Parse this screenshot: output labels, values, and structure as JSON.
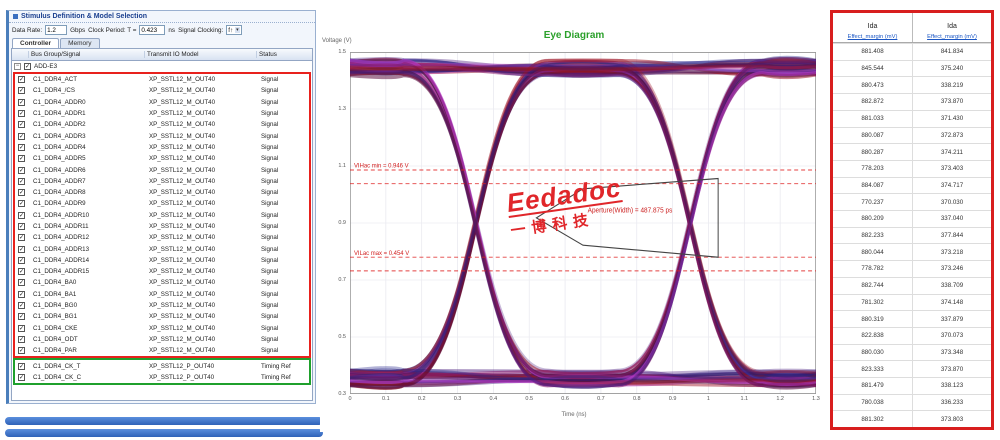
{
  "left_panel": {
    "group_title": "Stimulus Definition & Model Selection",
    "fields": {
      "data_rate_label": "Data Rate:",
      "data_rate_value": "1.2",
      "data_rate_unit": "Gbps",
      "clock_period_label": "Clock Period: T =",
      "clock_period_value": "0.423",
      "clock_period_unit": "ns",
      "signal_clocking_label": "Signal Clocking:",
      "signal_clocking_value": "f↑"
    },
    "tabs": [
      {
        "label": "Controller",
        "active": true
      },
      {
        "label": "Memory",
        "active": false
      }
    ],
    "table": {
      "headers": [
        "Bus Group/Signal",
        "Transmit IO Model",
        "Status"
      ],
      "root_label": "ADD-E3",
      "signal_rows": [
        {
          "signal": "C1_DDR4_ACT",
          "model": "XP_SSTL12_M_OUT40",
          "status": "Signal"
        },
        {
          "signal": "C1_DDR4_/CS",
          "model": "XP_SSTL12_M_OUT40",
          "status": "Signal"
        },
        {
          "signal": "C1_DDR4_ADDR0",
          "model": "XP_SSTL12_M_OUT40",
          "status": "Signal"
        },
        {
          "signal": "C1_DDR4_ADDR1",
          "model": "XP_SSTL12_M_OUT40",
          "status": "Signal"
        },
        {
          "signal": "C1_DDR4_ADDR2",
          "model": "XP_SSTL12_M_OUT40",
          "status": "Signal"
        },
        {
          "signal": "C1_DDR4_ADDR3",
          "model": "XP_SSTL12_M_OUT40",
          "status": "Signal"
        },
        {
          "signal": "C1_DDR4_ADDR4",
          "model": "XP_SSTL12_M_OUT40",
          "status": "Signal"
        },
        {
          "signal": "C1_DDR4_ADDR5",
          "model": "XP_SSTL12_M_OUT40",
          "status": "Signal"
        },
        {
          "signal": "C1_DDR4_ADDR6",
          "model": "XP_SSTL12_M_OUT40",
          "status": "Signal"
        },
        {
          "signal": "C1_DDR4_ADDR7",
          "model": "XP_SSTL12_M_OUT40",
          "status": "Signal"
        },
        {
          "signal": "C1_DDR4_ADDR8",
          "model": "XP_SSTL12_M_OUT40",
          "status": "Signal"
        },
        {
          "signal": "C1_DDR4_ADDR9",
          "model": "XP_SSTL12_M_OUT40",
          "status": "Signal"
        },
        {
          "signal": "C1_DDR4_ADDR10",
          "model": "XP_SSTL12_M_OUT40",
          "status": "Signal"
        },
        {
          "signal": "C1_DDR4_ADDR11",
          "model": "XP_SSTL12_M_OUT40",
          "status": "Signal"
        },
        {
          "signal": "C1_DDR4_ADDR12",
          "model": "XP_SSTL12_M_OUT40",
          "status": "Signal"
        },
        {
          "signal": "C1_DDR4_ADDR13",
          "model": "XP_SSTL12_M_OUT40",
          "status": "Signal"
        },
        {
          "signal": "C1_DDR4_ADDR14",
          "model": "XP_SSTL12_M_OUT40",
          "status": "Signal"
        },
        {
          "signal": "C1_DDR4_ADDR15",
          "model": "XP_SSTL12_M_OUT40",
          "status": "Signal"
        },
        {
          "signal": "C1_DDR4_BA0",
          "model": "XP_SSTL12_M_OUT40",
          "status": "Signal"
        },
        {
          "signal": "C1_DDR4_BA1",
          "model": "XP_SSTL12_M_OUT40",
          "status": "Signal"
        },
        {
          "signal": "C1_DDR4_BG0",
          "model": "XP_SSTL12_M_OUT40",
          "status": "Signal"
        },
        {
          "signal": "C1_DDR4_BG1",
          "model": "XP_SSTL12_M_OUT40",
          "status": "Signal"
        },
        {
          "signal": "C1_DDR4_CKE",
          "model": "XP_SSTL12_M_OUT40",
          "status": "Signal"
        },
        {
          "signal": "C1_DDR4_ODT",
          "model": "XP_SSTL12_M_OUT40",
          "status": "Signal"
        },
        {
          "signal": "C1_DDR4_PAR",
          "model": "XP_SSTL12_M_OUT40",
          "status": "Signal"
        }
      ],
      "clock_rows": [
        {
          "signal": "C1_DDR4_CK_T",
          "model": "XP_SSTL12_P_OUT40",
          "status": "Timing Ref"
        },
        {
          "signal": "C1_DDR4_CK_C",
          "model": "XP_SSTL12_P_OUT40",
          "status": "Timing Ref"
        }
      ]
    }
  },
  "eye": {
    "title": "Eye Diagram",
    "title_color": "#2ba02b",
    "y_axis_label": "Voltage (V)",
    "x_axis_label": "Time (ns)",
    "x_ticks": [
      "0",
      "0.1",
      "0.2",
      "0.3",
      "0.4",
      "0.5",
      "0.6",
      "0.7",
      "0.8",
      "0.9",
      "1",
      "1.1",
      "1.2",
      "1.3"
    ],
    "y_ticks": [
      "1.5",
      "1.3",
      "1.1",
      "0.9",
      "0.7",
      "0.5",
      "0.3"
    ],
    "ref_lines": [
      {
        "pos": 0.345,
        "label": "VIHac min = 0.946 V"
      },
      {
        "pos": 0.385,
        "label": ""
      },
      {
        "pos": 0.6,
        "label": "VILac max = 0.454 V"
      },
      {
        "pos": 0.64,
        "label": ""
      }
    ],
    "aperture_label": "Aperture(Width) = 487.875 ps",
    "watermark": {
      "line1": "Eedadoc",
      "line2": "一博科技"
    },
    "trace_colors": [
      "#4a1d7e",
      "#8c1d6f",
      "#a01a2a",
      "#2d2d8f",
      "#b83bc9",
      "#5e1040",
      "#321b6e",
      "#8a1111"
    ]
  },
  "right_panel": {
    "columns": [
      {
        "title": "Ida",
        "link": "Effect_margin (mV)"
      },
      {
        "title": "Ida",
        "link": "Effect_margin (mV)"
      }
    ],
    "rows": [
      [
        "881.408",
        "841.834"
      ],
      [
        "845.544",
        "375.240"
      ],
      [
        "880.473",
        "338.219"
      ],
      [
        "882.872",
        "373.870"
      ],
      [
        "881.033",
        "371.430"
      ],
      [
        "880.087",
        "372.873"
      ],
      [
        "880.287",
        "374.211"
      ],
      [
        "778.203",
        "373.403"
      ],
      [
        "884.087",
        "374.717"
      ],
      [
        "770.237",
        "370.030"
      ],
      [
        "880.209",
        "337.040"
      ],
      [
        "882.233",
        "377.844"
      ],
      [
        "880.044",
        "373.218"
      ],
      [
        "778.782",
        "373.246"
      ],
      [
        "882.744",
        "338.709"
      ],
      [
        "781.302",
        "374.148"
      ],
      [
        "880.319",
        "337.879"
      ],
      [
        "822.838",
        "370.073"
      ],
      [
        "880.030",
        "373.348"
      ],
      [
        "823.333",
        "373.870"
      ],
      [
        "881.479",
        "338.123"
      ],
      [
        "780.038",
        "336.233"
      ],
      [
        "881.302",
        "373.803"
      ]
    ]
  },
  "accents": {
    "red_box": "#e8211d",
    "green_box": "#1fa02c",
    "panel_border": "#d81e1e"
  }
}
